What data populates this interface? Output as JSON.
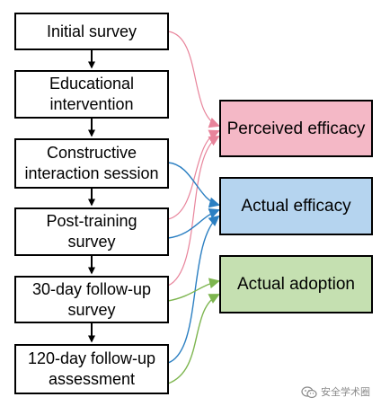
{
  "flow_steps": [
    {
      "id": "initial-survey",
      "label": "Initial survey"
    },
    {
      "id": "educational-intervention",
      "label": "Educational\nintervention"
    },
    {
      "id": "constructive-interaction-session",
      "label": "Constructive\ninteraction session"
    },
    {
      "id": "post-training-survey",
      "label": "Post-training\nsurvey"
    },
    {
      "id": "30-day-follow-up-survey",
      "label": "30-day follow-up\nsurvey"
    },
    {
      "id": "120-day-follow-up-assessment",
      "label": "120-day follow-up\nassessment"
    }
  ],
  "outcomes": [
    {
      "id": "perceived-efficacy",
      "label": "Perceived efficacy",
      "color": "#f4b8c6",
      "arrow_color": "#e8849b"
    },
    {
      "id": "actual-efficacy",
      "label": "Actual efficacy",
      "color": "#b5d4ef",
      "arrow_color": "#2b7fc2"
    },
    {
      "id": "actual-adoption",
      "label": "Actual adoption",
      "color": "#c5e0b1",
      "arrow_color": "#7db54f"
    }
  ],
  "links": [
    {
      "from": "initial-survey",
      "to": "perceived-efficacy"
    },
    {
      "from": "post-training-survey",
      "to": "perceived-efficacy"
    },
    {
      "from": "30-day-follow-up-survey",
      "to": "perceived-efficacy"
    },
    {
      "from": "constructive-interaction-session",
      "to": "actual-efficacy"
    },
    {
      "from": "post-training-survey",
      "to": "actual-efficacy"
    },
    {
      "from": "120-day-follow-up-assessment",
      "to": "actual-efficacy"
    },
    {
      "from": "30-day-follow-up-survey",
      "to": "actual-adoption"
    },
    {
      "from": "120-day-follow-up-assessment",
      "to": "actual-adoption"
    }
  ],
  "watermark": {
    "text": "安全学术圈",
    "icon": "wechat-icon"
  }
}
